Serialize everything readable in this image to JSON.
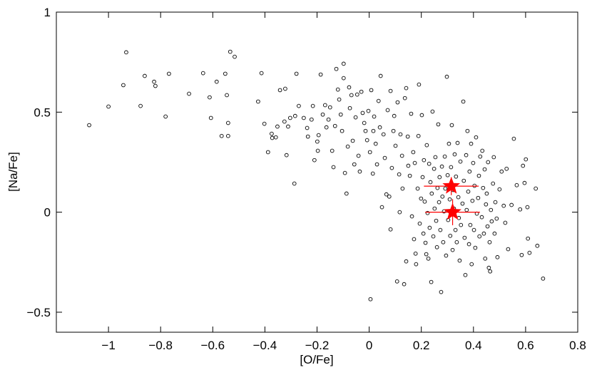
{
  "chart_data": {
    "type": "scatter",
    "x_label": "[O/Fe]",
    "y_label": "[Na/Fe]",
    "xlim": [
      -1.2,
      0.8
    ],
    "ylim": [
      -0.6,
      1
    ],
    "xticks": [
      {
        "value": -1,
        "label": "−1"
      },
      {
        "value": -0.8,
        "label": "−0.8"
      },
      {
        "value": -0.6,
        "label": "−0.6"
      },
      {
        "value": -0.4,
        "label": "−0.4"
      },
      {
        "value": -0.2,
        "label": "−0.2"
      },
      0,
      0.2,
      0.4,
      0.6,
      0.8
    ],
    "yticks": [
      {
        "value": -0.5,
        "label": "−0.5"
      },
      0,
      0.5,
      1
    ],
    "series": [
      {
        "color": "#000000",
        "marker": "open-circle",
        "x": [
          -1.074,
          -1.0,
          -0.943,
          -0.932,
          -0.877,
          -0.861,
          -0.825,
          -0.82,
          -0.781,
          -0.768,
          -0.691,
          -0.637,
          -0.612,
          -0.607,
          -0.585,
          -0.566,
          -0.552,
          -0.546,
          -0.541,
          -0.541,
          -0.533,
          -0.516,
          -0.426,
          -0.413,
          -0.402,
          -0.388,
          -0.374,
          -0.372,
          -0.358,
          -0.352,
          -0.342,
          -0.325,
          -0.322,
          -0.317,
          -0.311,
          -0.303,
          -0.287,
          -0.284,
          -0.279,
          -0.27,
          -0.251,
          -0.238,
          -0.235,
          -0.221,
          -0.216,
          -0.21,
          -0.199,
          -0.197,
          -0.194,
          -0.186,
          -0.178,
          -0.169,
          -0.164,
          -0.156,
          -0.15,
          -0.142,
          -0.137,
          -0.131,
          -0.126,
          -0.12,
          -0.115,
          -0.109,
          -0.104,
          -0.098,
          -0.098,
          -0.093,
          -0.087,
          -0.082,
          -0.077,
          -0.074,
          -0.068,
          -0.063,
          -0.057,
          -0.052,
          -0.046,
          -0.041,
          -0.036,
          -0.03,
          -0.025,
          -0.019,
          -0.014,
          -0.008,
          -0.003,
          0.003,
          0.005,
          0.008,
          0.014,
          0.016,
          0.019,
          0.025,
          0.03,
          0.036,
          0.041,
          0.044,
          0.049,
          0.055,
          0.06,
          0.066,
          0.071,
          0.077,
          0.082,
          0.082,
          0.087,
          0.093,
          0.096,
          0.101,
          0.107,
          0.109,
          0.115,
          0.117,
          0.12,
          0.126,
          0.128,
          0.134,
          0.137,
          0.142,
          0.142,
          0.148,
          0.15,
          0.156,
          0.161,
          0.164,
          0.169,
          0.172,
          0.175,
          0.178,
          0.18,
          0.186,
          0.189,
          0.191,
          0.194,
          0.199,
          0.202,
          0.205,
          0.208,
          0.21,
          0.213,
          0.216,
          0.219,
          0.221,
          0.224,
          0.227,
          0.23,
          0.232,
          0.235,
          0.238,
          0.24,
          0.243,
          0.246,
          0.249,
          0.251,
          0.254,
          0.257,
          0.26,
          0.262,
          0.265,
          0.268,
          0.27,
          0.273,
          0.276,
          0.279,
          0.281,
          0.284,
          0.287,
          0.29,
          0.292,
          0.295,
          0.298,
          0.301,
          0.303,
          0.306,
          0.309,
          0.311,
          0.314,
          0.317,
          0.32,
          0.322,
          0.325,
          0.328,
          0.331,
          0.333,
          0.336,
          0.339,
          0.342,
          0.344,
          0.347,
          0.35,
          0.352,
          0.358,
          0.361,
          0.363,
          0.366,
          0.369,
          0.372,
          0.374,
          0.377,
          0.38,
          0.383,
          0.385,
          0.388,
          0.391,
          0.393,
          0.396,
          0.399,
          0.402,
          0.404,
          0.407,
          0.41,
          0.413,
          0.418,
          0.421,
          0.423,
          0.426,
          0.432,
          0.434,
          0.437,
          0.44,
          0.443,
          0.445,
          0.448,
          0.451,
          0.454,
          0.456,
          0.459,
          0.462,
          0.464,
          0.467,
          0.47,
          0.475,
          0.478,
          0.481,
          0.484,
          0.489,
          0.492,
          0.5,
          0.508,
          0.516,
          0.522,
          0.527,
          0.533,
          0.546,
          0.555,
          0.566,
          0.579,
          0.585,
          0.59,
          0.596,
          0.601,
          0.607,
          0.609,
          0.615,
          0.639,
          0.645,
          0.667
        ],
        "y": [
          0.435,
          0.528,
          0.635,
          0.799,
          0.531,
          0.681,
          0.652,
          0.631,
          0.478,
          0.692,
          0.592,
          0.695,
          0.574,
          0.471,
          0.652,
          0.381,
          0.692,
          0.585,
          0.446,
          0.381,
          0.802,
          0.777,
          0.553,
          0.695,
          0.442,
          0.3,
          0.392,
          0.371,
          0.374,
          0.428,
          0.61,
          0.453,
          0.617,
          0.285,
          0.428,
          0.471,
          0.143,
          0.481,
          0.692,
          0.531,
          0.471,
          0.421,
          0.378,
          0.463,
          0.531,
          0.26,
          0.353,
          0.307,
          0.385,
          0.688,
          0.488,
          0.535,
          0.424,
          0.463,
          0.524,
          0.307,
          0.225,
          0.431,
          0.716,
          0.613,
          0.563,
          0.488,
          0.406,
          0.742,
          0.67,
          0.196,
          0.093,
          0.328,
          0.624,
          0.52,
          0.585,
          0.357,
          0.239,
          0.474,
          0.588,
          0.282,
          0.203,
          0.602,
          0.496,
          0.446,
          0.406,
          0.36,
          0.506,
          0.3,
          -0.435,
          0.61,
          0.193,
          0.406,
          0.478,
          0.342,
          0.239,
          0.556,
          0.424,
          0.681,
          0.025,
          0.389,
          0.271,
          0.089,
          0.51,
          0.078,
          0.606,
          -0.086,
          0.221,
          0.406,
          0.481,
          0.332,
          -0.346,
          0.549,
          0.189,
          0.0,
          0.389,
          0.282,
          0.118,
          -0.36,
          0.57,
          0.62,
          -0.246,
          0.378,
          0.232,
          0.182,
          0.492,
          -0.021,
          0.3,
          -0.135,
          0.246,
          -0.207,
          -0.26,
          0.118,
          0.381,
          0.638,
          -0.057,
          0.068,
          0.485,
          0.175,
          -0.107,
          0.26,
          0.053,
          -0.153,
          -0.21,
          0.335,
          -0.004,
          -0.232,
          0.242,
          -0.078,
          0.15,
          -0.349,
          0.093,
          0.503,
          -0.121,
          0.217,
          0.018,
          0.275,
          -0.043,
          -0.175,
          0.121,
          0.439,
          0.05,
          0.175,
          -0.089,
          -0.399,
          0.228,
          0.078,
          -0.15,
          0.004,
          0.278,
          0.118,
          -0.217,
          0.677,
          0.185,
          -0.039,
          0.342,
          0.064,
          -0.118,
          0.225,
          0.435,
          -0.189,
          0.111,
          0.018,
          0.289,
          -0.089,
          0.178,
          -0.15,
          0.346,
          0.075,
          -0.029,
          -0.242,
          0.253,
          -0.064,
          0.043,
          0.553,
          0.157,
          -0.128,
          -0.314,
          0.285,
          0.011,
          0.406,
          0.103,
          -0.16,
          0.203,
          -0.064,
          0.342,
          -0.26,
          0.057,
          0.246,
          -0.089,
          0.132,
          -0.178,
          0.374,
          -0.007,
          0.071,
          0.182,
          -0.121,
          0.278,
          -0.025,
          0.307,
          0.121,
          -0.107,
          0.214,
          -0.232,
          0.039,
          0.093,
          -0.071,
          0.25,
          -0.278,
          -0.15,
          -0.296,
          0.011,
          -0.046,
          0.143,
          0.275,
          -0.107,
          0.05,
          -0.032,
          -0.225,
          0.114,
          0.203,
          0.032,
          -0.053,
          0.217,
          -0.185,
          0.036,
          0.367,
          0.135,
          0.014,
          -0.214,
          0.232,
          0.146,
          0.264,
          0.025,
          -0.132,
          -0.203,
          0.118,
          -0.168,
          -0.332
        ]
      },
      {
        "color": "#ff0000",
        "marker": "star",
        "x": [
          0.315,
          0.32
        ],
        "y": [
          0.13,
          0.0
        ],
        "xerr": [
          0.105,
          0.105
        ],
        "yerr": [
          0.045,
          0.065
        ]
      }
    ]
  }
}
